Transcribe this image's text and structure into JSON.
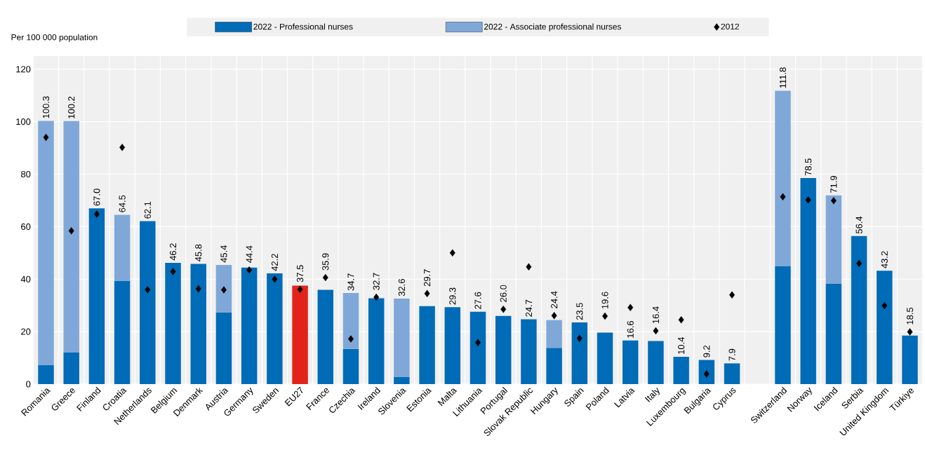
{
  "chart_data": {
    "type": "bar",
    "stacked": true,
    "ylabel": "Per 100 000 population",
    "categories": [
      "Romania",
      "Greece",
      "Finland",
      "Croatia",
      "Netherlands",
      "Belgium",
      "Denmark",
      "Austria",
      "Germany",
      "Sweden",
      "EU27",
      "France",
      "Czechia",
      "Ireland",
      "Slovenia",
      "Estonia",
      "Malta",
      "Lithuania",
      "Portugal",
      "Slovak Republic",
      "Hungary",
      "Spain",
      "Poland",
      "Latvia",
      "Italy",
      "Luxembourg",
      "Bulgaria",
      "Cyprus",
      null,
      "Switzerland",
      "Norway",
      "Iceland",
      "Serbia",
      "United Kingdom",
      "Türkiye"
    ],
    "series": [
      {
        "name": "2022 - Professional nurses",
        "color": "#006bb6",
        "colors": [
          "#006bb6",
          "#006bb6",
          "#006bb6",
          "#006bb6",
          "#006bb6",
          "#006bb6",
          "#006bb6",
          "#006bb6",
          "#006bb6",
          "#006bb6",
          "#e2231a",
          "#006bb6",
          "#006bb6",
          "#006bb6",
          "#006bb6",
          "#006bb6",
          "#006bb6",
          "#006bb6",
          "#006bb6",
          "#006bb6",
          "#006bb6",
          "#006bb6",
          "#006bb6",
          "#006bb6",
          "#006bb6",
          "#006bb6",
          "#006bb6",
          "#006bb6",
          "#006bb6",
          "#006bb6",
          "#006bb6",
          "#006bb6",
          "#006bb6",
          "#006bb6",
          "#006bb6"
        ],
        "values": [
          7.2,
          12.0,
          67.0,
          39.4,
          62.1,
          46.2,
          45.8,
          27.4,
          44.4,
          42.2,
          37.5,
          35.9,
          13.4,
          32.7,
          2.7,
          29.7,
          29.3,
          27.6,
          26.0,
          24.7,
          13.8,
          23.5,
          19.6,
          16.6,
          16.4,
          10.4,
          9.2,
          7.9,
          null,
          45.0,
          78.5,
          38.3,
          56.4,
          43.2,
          18.5
        ]
      },
      {
        "name": "2022 - Associate professional nurses",
        "color": "#7fa8d9",
        "values": [
          93.1,
          88.2,
          null,
          25.1,
          null,
          null,
          null,
          18.0,
          null,
          null,
          null,
          null,
          21.3,
          null,
          29.9,
          null,
          null,
          null,
          null,
          null,
          10.6,
          null,
          null,
          null,
          null,
          null,
          null,
          null,
          null,
          66.8,
          null,
          33.6,
          null,
          null,
          null
        ]
      },
      {
        "name": "2012",
        "type": "scatter",
        "marker": "diamond",
        "color": "#000000",
        "values": [
          94.0,
          58.4,
          64.8,
          90.2,
          36.0,
          42.9,
          36.3,
          35.9,
          43.5,
          40.0,
          36.1,
          40.6,
          17.2,
          33.1,
          null,
          34.5,
          50.0,
          15.8,
          28.5,
          44.7,
          26.1,
          17.4,
          25.9,
          29.2,
          20.3,
          24.5,
          3.9,
          34.0,
          null,
          71.4,
          70.2,
          69.9,
          46.0,
          29.9,
          19.9
        ]
      }
    ],
    "totals": [
      "100.3",
      "100.2",
      "67.0",
      "64.5",
      "62.1",
      "46.2",
      "45.8",
      "45.4",
      "44.4",
      "42.2",
      "37.5",
      "35.9",
      "34.7",
      "32.7",
      "32.6",
      "29.7",
      "29.3",
      "27.6",
      "26.0",
      "24.7",
      "24.4",
      "23.5",
      "19.6",
      "16.6",
      "16.4",
      "10.4",
      "9.2",
      "7.9",
      null,
      "111.8",
      "78.5",
      "71.9",
      "56.4",
      "43.2",
      "18.5"
    ],
    "ylim": [
      0,
      125
    ],
    "yticks": [
      0,
      20,
      40,
      60,
      80,
      100,
      120
    ],
    "grid": true,
    "legend": "top"
  }
}
